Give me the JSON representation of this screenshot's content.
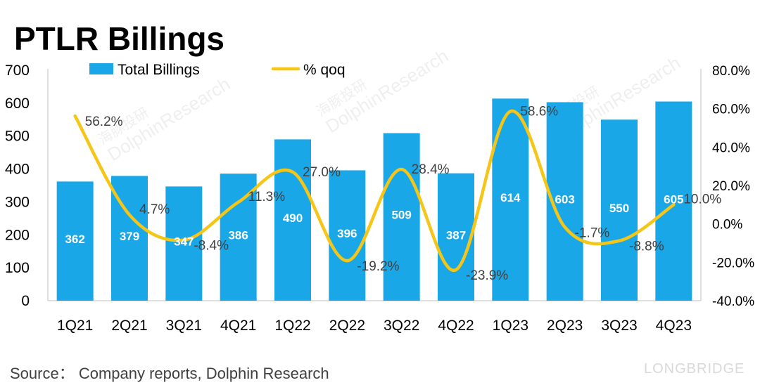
{
  "chart_data": {
    "type": "bar",
    "title": "PTLR Billings",
    "categories": [
      "1Q21",
      "2Q21",
      "3Q21",
      "4Q21",
      "1Q22",
      "2Q22",
      "3Q22",
      "4Q22",
      "1Q23",
      "2Q23",
      "3Q23",
      "4Q23"
    ],
    "series": [
      {
        "name": "Total Billings",
        "type": "bar",
        "axis": "left",
        "color": "#1aa7e8",
        "values": [
          362,
          379,
          347,
          386,
          490,
          396,
          509,
          387,
          614,
          603,
          550,
          605
        ],
        "labels": [
          "362",
          "379",
          "347",
          "386",
          "490",
          "396",
          "509",
          "387",
          "614",
          "603",
          "550",
          "605"
        ]
      },
      {
        "name": "% qoq",
        "type": "line",
        "axis": "right",
        "color": "#f5c518",
        "values": [
          56.2,
          4.7,
          -8.4,
          11.3,
          27.0,
          -19.2,
          28.4,
          -23.9,
          58.6,
          -1.7,
          -8.8,
          10.0
        ],
        "labels": [
          "56.2%",
          "4.7%",
          "-8.4%",
          "11.3%",
          "27.0%",
          "-19.2%",
          "28.4%",
          "-23.9%",
          "58.6%",
          "-1.7%",
          "-8.8%",
          "10.0%"
        ]
      }
    ],
    "ylim": [
      0,
      700
    ],
    "yticks": [
      "0",
      "100",
      "200",
      "300",
      "400",
      "500",
      "600",
      "700"
    ],
    "y2lim": [
      -40,
      80
    ],
    "y2ticks": [
      "-40.0%",
      "-20.0%",
      "0.0%",
      "20.0%",
      "40.0%",
      "60.0%",
      "80.0%"
    ],
    "legend_position": "top",
    "grid": false
  },
  "source": "Source： Company reports, Dolphin Research",
  "watermark": {
    "text_1": "海豚投研",
    "text_2": "DolphinResearch",
    "brand": "LONGBRIDGE"
  }
}
